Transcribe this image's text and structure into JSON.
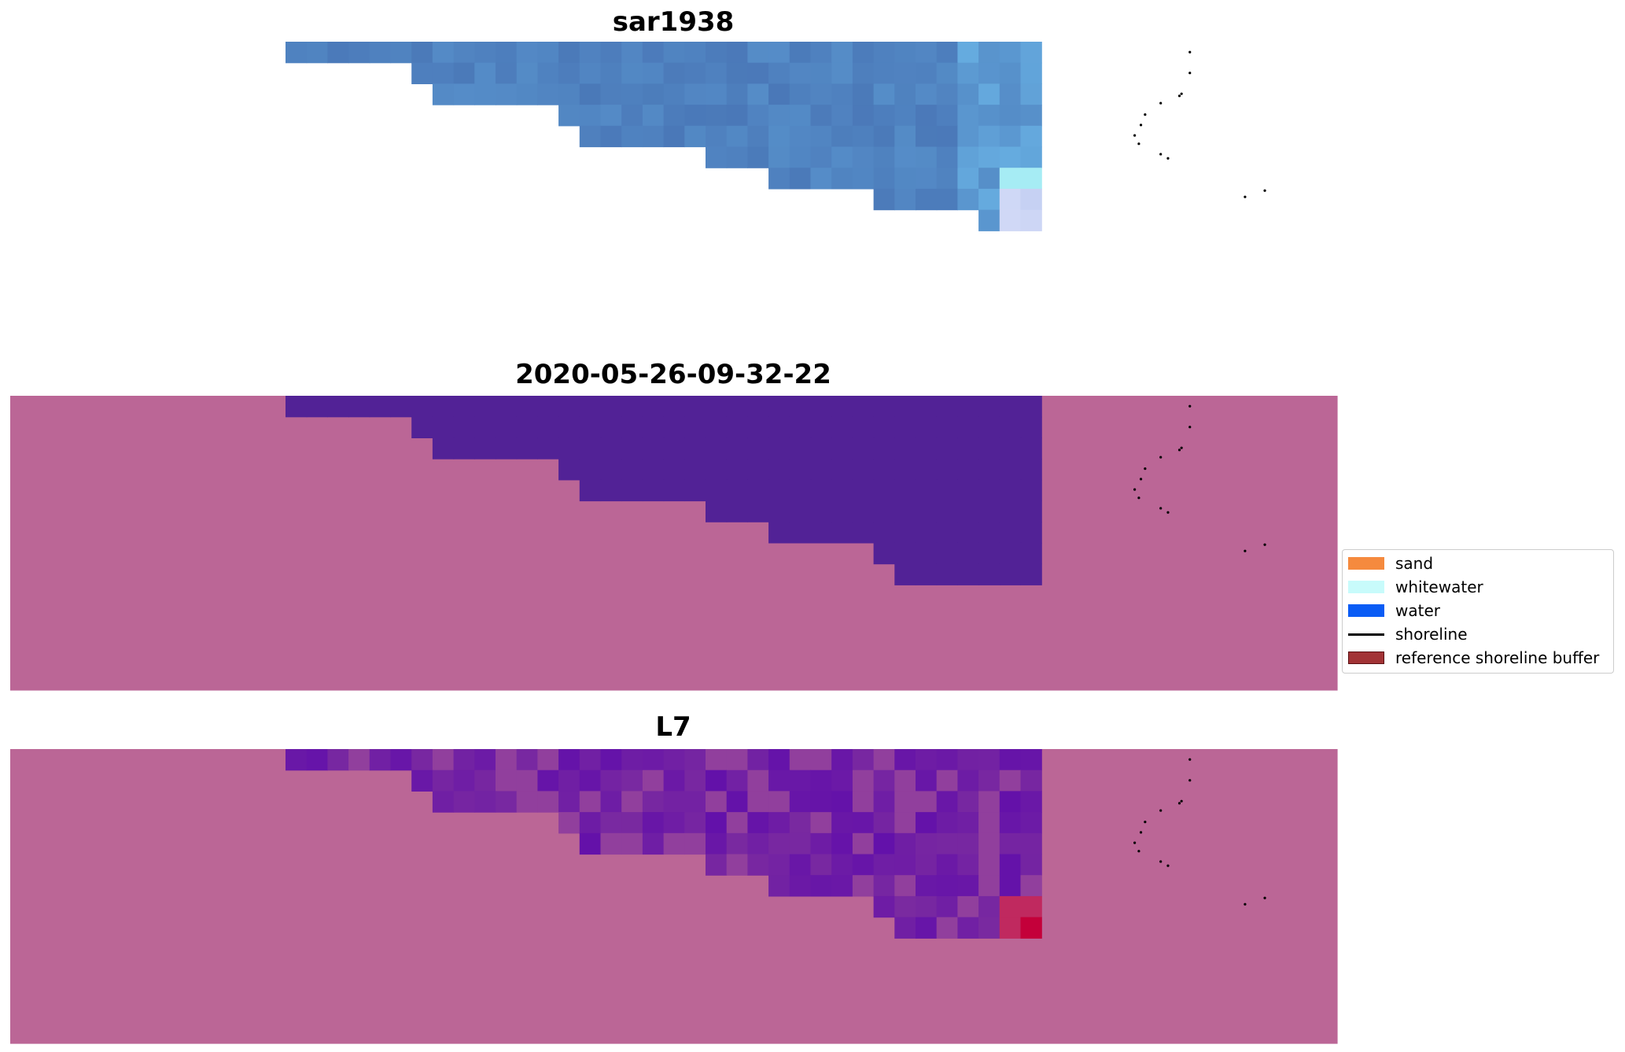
{
  "panels": [
    {
      "title": "sar1938"
    },
    {
      "title": "2020-05-26-09-32-22"
    },
    {
      "title": "L7"
    }
  ],
  "legend": {
    "items": [
      {
        "label": "sand",
        "color": "#f58a3e",
        "kind": "patch"
      },
      {
        "label": "whitewater",
        "color": "#c8fbfb",
        "kind": "patch"
      },
      {
        "label": "water",
        "color": "#0a5cf5",
        "kind": "patch"
      },
      {
        "label": "shoreline",
        "color": "#000000",
        "kind": "line"
      },
      {
        "label": "reference shoreline buffer",
        "color": "#a23336",
        "kind": "patch"
      }
    ]
  },
  "colors": {
    "sar_base": "#4a78b8",
    "sar_light": "#6ab4e6",
    "class_water": "#522296",
    "class_land": "#bb6696",
    "l7_purple": "#7a2aa0",
    "l7_deep": "#5400b0",
    "l7_red": "#c4003a"
  }
}
